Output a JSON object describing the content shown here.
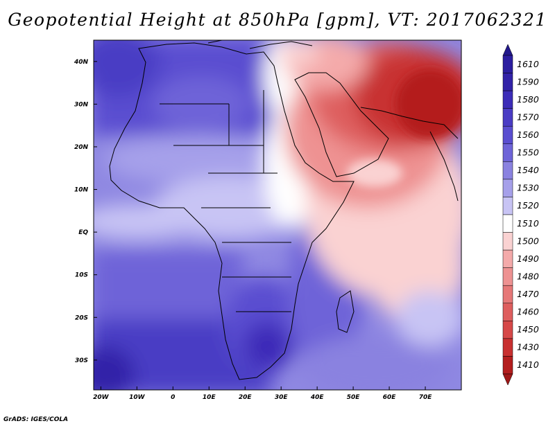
{
  "title": "Geopotential Height at 850hPa [gpm], VT: 2017062321",
  "footer": "GrADS: IGES/COLA",
  "map": {
    "region": "Africa and Middle East",
    "lon_range": [
      -22,
      80
    ],
    "lat_range": [
      -37,
      45
    ],
    "lon_ticks": [
      {
        "value": -20,
        "label": "20W"
      },
      {
        "value": -10,
        "label": "10W"
      },
      {
        "value": 0,
        "label": "0"
      },
      {
        "value": 10,
        "label": "10E"
      },
      {
        "value": 20,
        "label": "20E"
      },
      {
        "value": 30,
        "label": "30E"
      },
      {
        "value": 40,
        "label": "40E"
      },
      {
        "value": 50,
        "label": "50E"
      },
      {
        "value": 60,
        "label": "60E"
      },
      {
        "value": 70,
        "label": "70E"
      }
    ],
    "lat_ticks": [
      {
        "value": 40,
        "label": "40N"
      },
      {
        "value": 30,
        "label": "30N"
      },
      {
        "value": 20,
        "label": "20N"
      },
      {
        "value": 10,
        "label": "10N"
      },
      {
        "value": 0,
        "label": "EQ"
      },
      {
        "value": -10,
        "label": "10S"
      },
      {
        "value": -20,
        "label": "20S"
      },
      {
        "value": -30,
        "label": "30S"
      }
    ]
  },
  "colorbar": {
    "levels": [
      {
        "label": "1610",
        "color": "#2c1ea0"
      },
      {
        "label": "1590",
        "color": "#3222a8"
      },
      {
        "label": "1580",
        "color": "#3c2cb8"
      },
      {
        "label": "1570",
        "color": "#4a3cc4"
      },
      {
        "label": "1560",
        "color": "#5a4ed0"
      },
      {
        "label": "1550",
        "color": "#6e64d8"
      },
      {
        "label": "1540",
        "color": "#8a82e0"
      },
      {
        "label": "1530",
        "color": "#a6a0ea"
      },
      {
        "label": "1520",
        "color": "#c8c4f4"
      },
      {
        "label": "1510",
        "color": "#ffffff"
      },
      {
        "label": "1500",
        "color": "#fad2d2"
      },
      {
        "label": "1490",
        "color": "#f4aaaa"
      },
      {
        "label": "1480",
        "color": "#ee9292"
      },
      {
        "label": "1470",
        "color": "#e67878"
      },
      {
        "label": "1460",
        "color": "#de5e5e"
      },
      {
        "label": "1450",
        "color": "#d64848"
      },
      {
        "label": "1430",
        "color": "#c83030"
      },
      {
        "label": "1410",
        "color": "#b41e1e"
      }
    ],
    "top_cap_color": "#22188c",
    "bottom_cap_color": "#a01818"
  }
}
